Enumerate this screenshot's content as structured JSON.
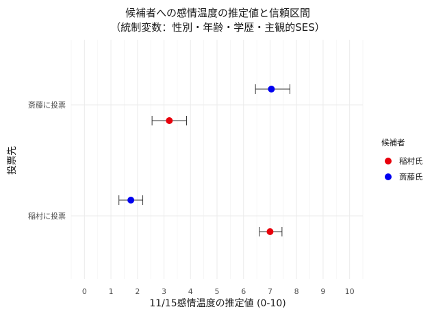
{
  "chart_data": {
    "type": "scatter",
    "title": "候補者への感情温度の推定値と信頼区間",
    "subtitle": "（統制変数：性別・年齢・学歴・主観的SES）",
    "xlabel": "11/15感情温度の推定値 (0-10)",
    "ylabel": "投票先",
    "xlim": [
      -0.5,
      10.5
    ],
    "x_ticks": [
      0,
      1,
      2,
      3,
      4,
      5,
      6,
      7,
      8,
      9,
      10
    ],
    "categories": [
      "斎藤に投票",
      "稲村に投票"
    ],
    "legend_title": "候補者",
    "legend_position": "right",
    "grid": true,
    "series": [
      {
        "name": "稲村氏",
        "color": "#e8000b",
        "points": [
          {
            "category": "斎藤に投票",
            "x": 3.2,
            "ci": [
              2.55,
              3.85
            ]
          },
          {
            "category": "稲村に投票",
            "x": 7.0,
            "ci": [
              6.6,
              7.45
            ]
          }
        ]
      },
      {
        "name": "斎藤氏",
        "color": "#0000f0",
        "points": [
          {
            "category": "斎藤に投票",
            "x": 7.05,
            "ci": [
              6.45,
              7.75
            ]
          },
          {
            "category": "稲村に投票",
            "x": 1.75,
            "ci": [
              1.3,
              2.2
            ]
          }
        ]
      }
    ]
  }
}
